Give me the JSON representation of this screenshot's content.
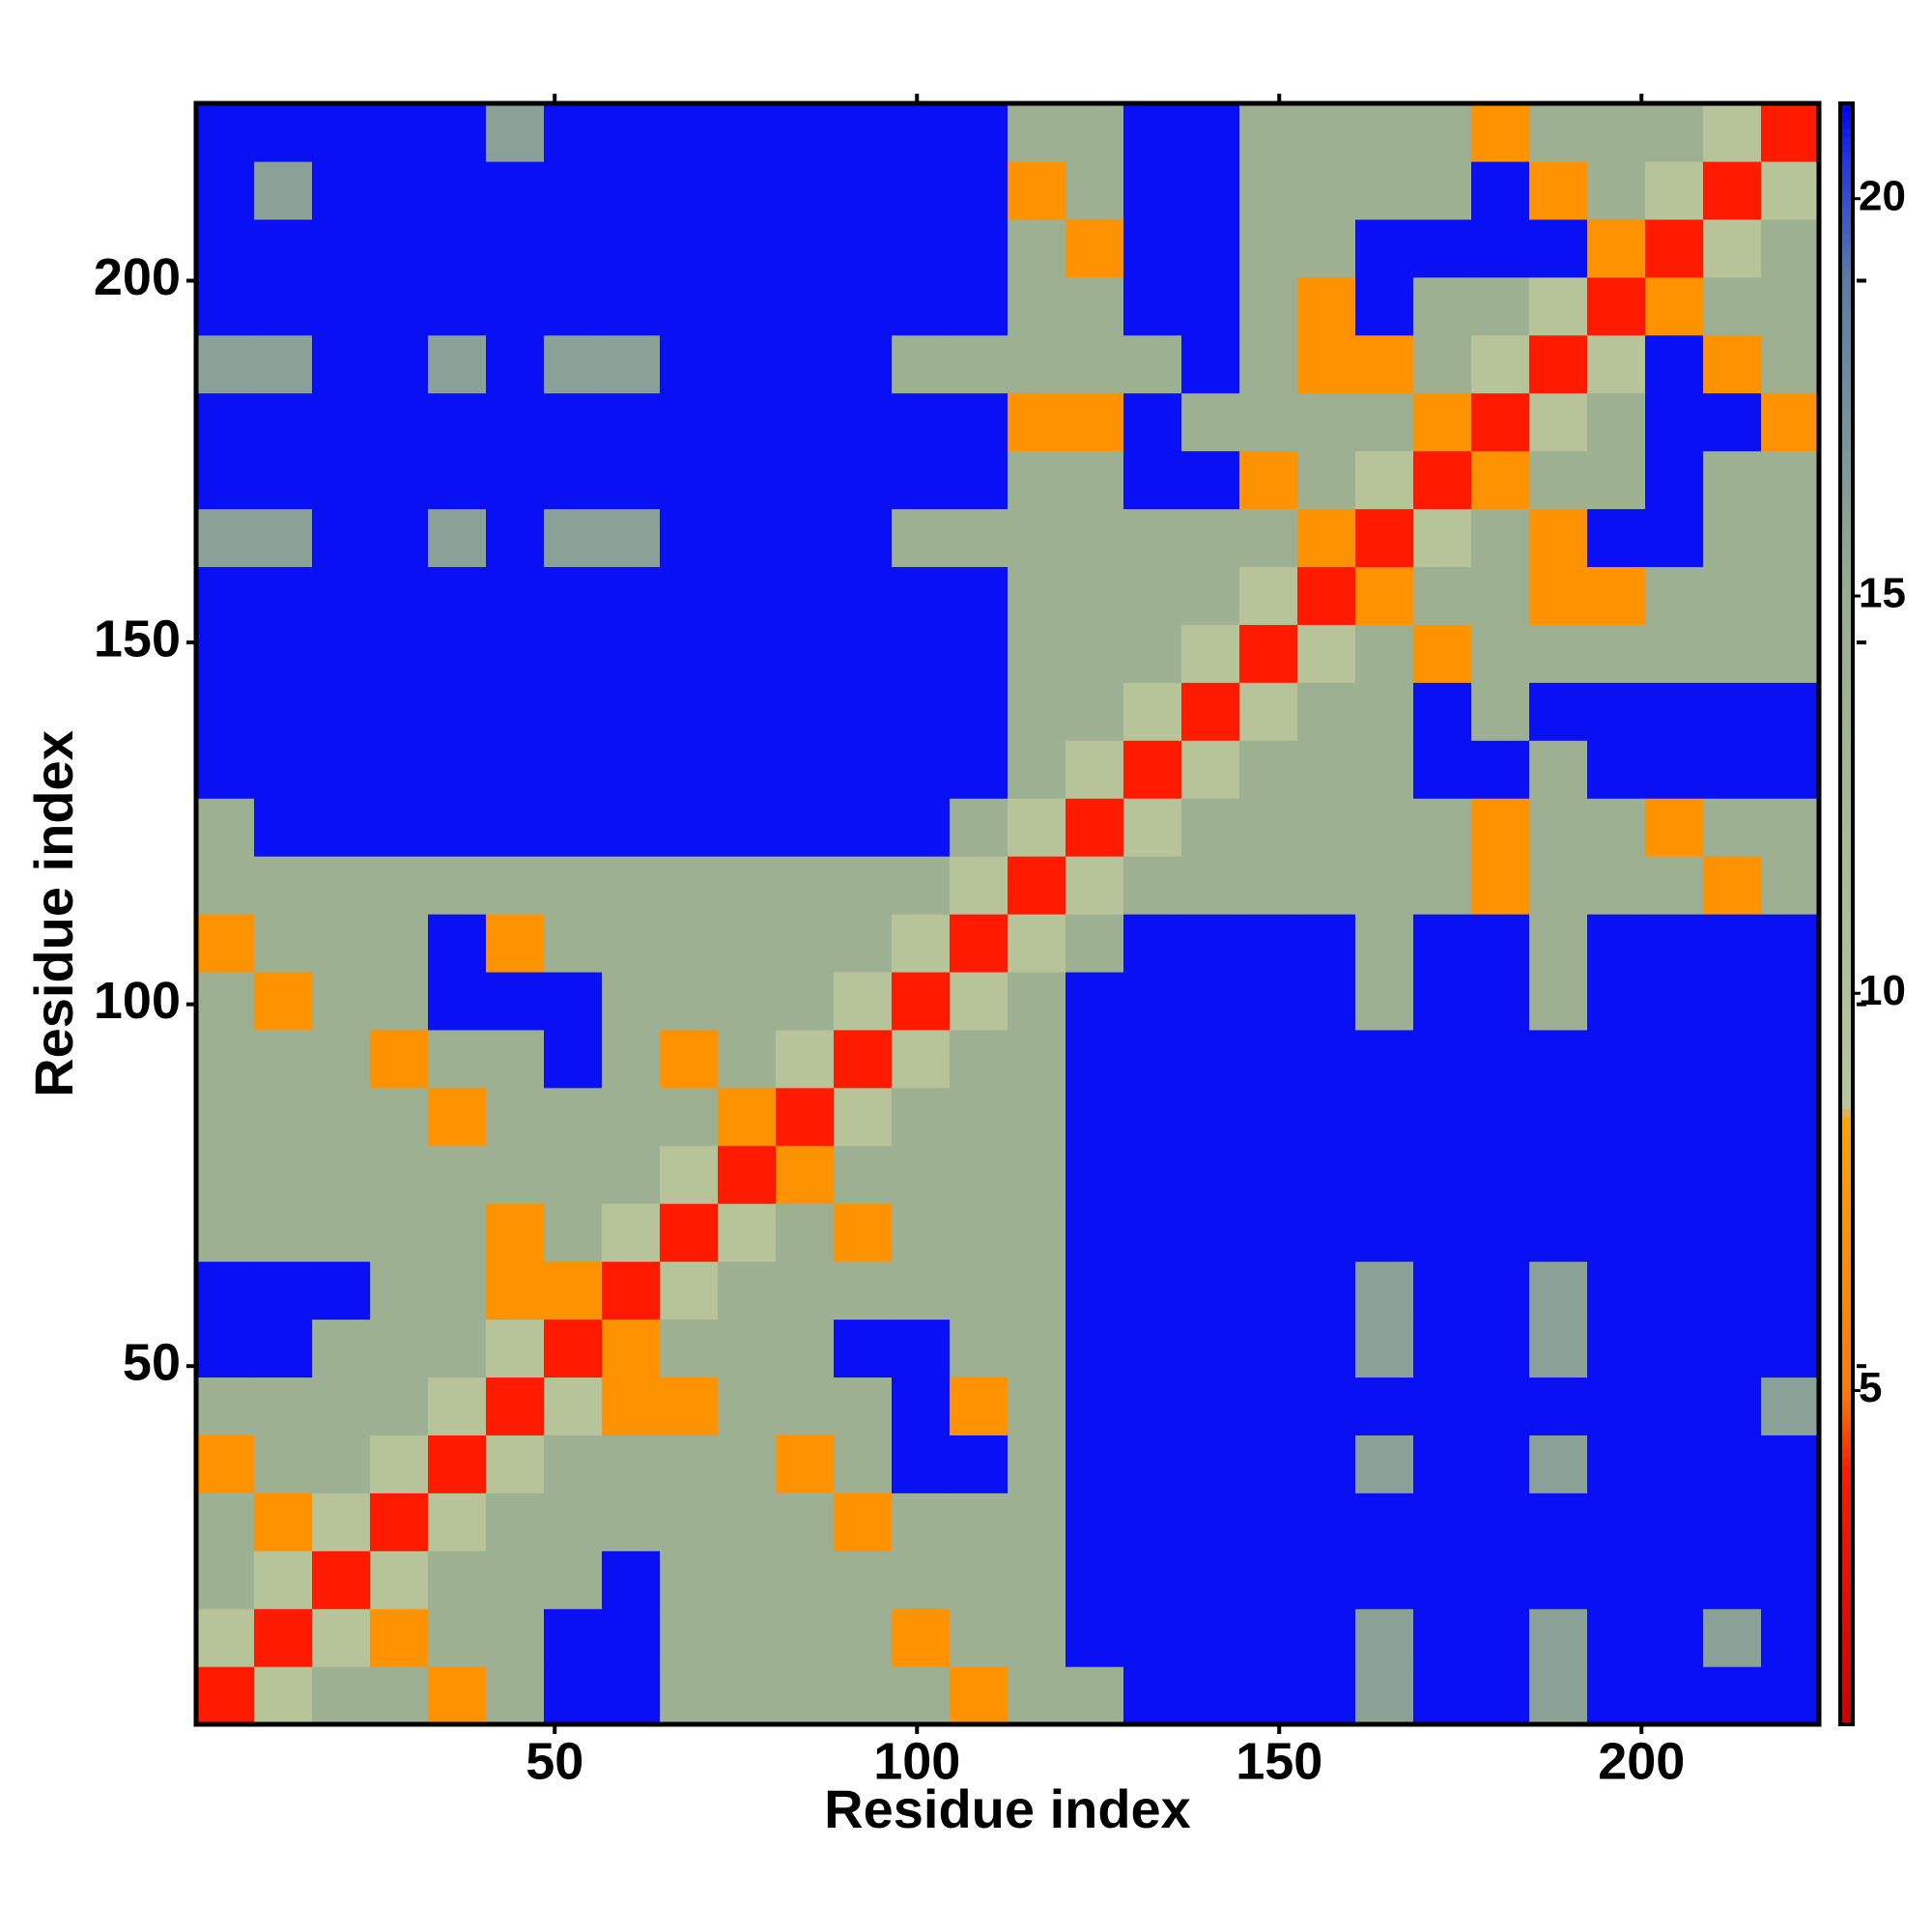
{
  "chart_data": {
    "type": "heatmap",
    "xlabel": "Residue index",
    "ylabel": "Residue index",
    "xlim": [
      0.5,
      224.5
    ],
    "ylim": [
      0.5,
      224.5
    ],
    "xticks": [
      50,
      100,
      150,
      200
    ],
    "yticks": [
      50,
      100,
      150,
      200
    ],
    "bins": [
      0.5,
      8.5,
      16.5,
      24.5,
      32.5,
      40.5,
      48.5,
      56.5,
      64.5,
      72.5,
      80.5,
      88.5,
      96.5,
      104.5,
      112.5,
      120.5,
      128.5,
      136.5,
      144.5,
      152.5,
      160.5,
      168.5,
      176.5,
      184.5,
      192.5,
      200.5,
      208.5,
      216.5,
      224.5
    ],
    "clim": [
      0.8,
      21.2
    ],
    "cticks": [
      5,
      10,
      15,
      20
    ],
    "colorscale": [
      [
        0.8,
        "#d00000"
      ],
      [
        4,
        "#ff1a00"
      ],
      [
        5,
        "#ff7a00"
      ],
      [
        8.4,
        "#ffa200"
      ],
      [
        8.6,
        "#b9c69a"
      ],
      [
        15,
        "#98ad90"
      ],
      [
        19,
        "#5a7ba6"
      ],
      [
        20.5,
        "#1e38e8"
      ],
      [
        21.2,
        "#0000f8"
      ]
    ],
    "z": [
      [
        4,
        9,
        14,
        14,
        7,
        14,
        21,
        21,
        14,
        14,
        14,
        14,
        14,
        7,
        14,
        14,
        21,
        21,
        21,
        21,
        16,
        21,
        21,
        16,
        21,
        21,
        21,
        21
      ],
      [
        9,
        4,
        9,
        7,
        14,
        14,
        21,
        21,
        14,
        14,
        14,
        14,
        7,
        14,
        14,
        21,
        21,
        21,
        21,
        21,
        16,
        21,
        21,
        16,
        21,
        21,
        16,
        21
      ],
      [
        14,
        9,
        4,
        9,
        14,
        14,
        14,
        21,
        14,
        14,
        14,
        14,
        14,
        14,
        14,
        21,
        21,
        21,
        21,
        21,
        21,
        21,
        21,
        21,
        21,
        21,
        21,
        21
      ],
      [
        14,
        7,
        9,
        4,
        9,
        14,
        14,
        14,
        14,
        14,
        14,
        7,
        14,
        14,
        14,
        21,
        21,
        21,
        21,
        21,
        21,
        21,
        21,
        21,
        21,
        21,
        21,
        21
      ],
      [
        7,
        14,
        14,
        9,
        4,
        9,
        14,
        14,
        14,
        14,
        7,
        14,
        21,
        21,
        14,
        21,
        21,
        21,
        21,
        21,
        16,
        21,
        21,
        16,
        21,
        21,
        21,
        21
      ],
      [
        14,
        14,
        14,
        14,
        9,
        4,
        9,
        7,
        7,
        14,
        14,
        14,
        21,
        7,
        14,
        21,
        21,
        21,
        21,
        21,
        21,
        21,
        21,
        21,
        21,
        21,
        21,
        16
      ],
      [
        21,
        21,
        14,
        14,
        14,
        9,
        4,
        7,
        14,
        14,
        14,
        21,
        21,
        14,
        14,
        21,
        21,
        21,
        21,
        21,
        16,
        21,
        21,
        16,
        21,
        21,
        21,
        21
      ],
      [
        21,
        21,
        21,
        14,
        14,
        7,
        7,
        4,
        9,
        14,
        14,
        14,
        14,
        14,
        14,
        21,
        21,
        21,
        21,
        21,
        16,
        21,
        21,
        16,
        21,
        21,
        21,
        21
      ],
      [
        14,
        14,
        14,
        14,
        14,
        7,
        14,
        9,
        4,
        9,
        14,
        7,
        14,
        14,
        14,
        21,
        21,
        21,
        21,
        21,
        21,
        21,
        21,
        21,
        21,
        21,
        21,
        21
      ],
      [
        14,
        14,
        14,
        14,
        14,
        14,
        14,
        14,
        9,
        4,
        7,
        14,
        14,
        14,
        14,
        21,
        21,
        21,
        21,
        21,
        21,
        21,
        21,
        21,
        21,
        21,
        21,
        21
      ],
      [
        14,
        14,
        14,
        14,
        7,
        14,
        14,
        14,
        14,
        7,
        4,
        9,
        14,
        14,
        14,
        21,
        21,
        21,
        21,
        21,
        21,
        21,
        21,
        21,
        21,
        21,
        21,
        21
      ],
      [
        14,
        14,
        14,
        7,
        14,
        14,
        21,
        14,
        7,
        14,
        9,
        4,
        9,
        14,
        14,
        21,
        21,
        21,
        21,
        21,
        21,
        21,
        21,
        21,
        21,
        21,
        21,
        21
      ],
      [
        14,
        7,
        14,
        14,
        21,
        21,
        21,
        14,
        14,
        14,
        14,
        9,
        4,
        9,
        14,
        21,
        21,
        21,
        21,
        21,
        14,
        21,
        21,
        14,
        21,
        21,
        21,
        21
      ],
      [
        7,
        14,
        14,
        14,
        21,
        7,
        14,
        14,
        14,
        14,
        14,
        14,
        9,
        4,
        9,
        14,
        21,
        21,
        21,
        21,
        14,
        21,
        21,
        14,
        21,
        21,
        21,
        21
      ],
      [
        14,
        14,
        14,
        14,
        14,
        14,
        14,
        14,
        14,
        14,
        14,
        14,
        14,
        9,
        4,
        9,
        14,
        14,
        14,
        14,
        14,
        14,
        7,
        14,
        14,
        14,
        7,
        14
      ],
      [
        14,
        21,
        21,
        21,
        21,
        21,
        21,
        21,
        21,
        21,
        21,
        21,
        21,
        14,
        9,
        4,
        9,
        14,
        14,
        14,
        14,
        14,
        7,
        14,
        14,
        7,
        14,
        14
      ],
      [
        21,
        21,
        21,
        21,
        21,
        21,
        21,
        21,
        21,
        21,
        21,
        21,
        21,
        21,
        14,
        9,
        4,
        9,
        14,
        14,
        14,
        21,
        21,
        14,
        21,
        21,
        21,
        21
      ],
      [
        21,
        21,
        21,
        21,
        21,
        21,
        21,
        21,
        21,
        21,
        21,
        21,
        21,
        21,
        14,
        14,
        9,
        4,
        9,
        14,
        14,
        21,
        14,
        21,
        21,
        21,
        21,
        21
      ],
      [
        21,
        21,
        21,
        21,
        21,
        21,
        21,
        21,
        21,
        21,
        21,
        21,
        21,
        21,
        14,
        14,
        14,
        9,
        4,
        9,
        14,
        7,
        14,
        14,
        14,
        14,
        14,
        14
      ],
      [
        21,
        21,
        21,
        21,
        21,
        21,
        21,
        21,
        21,
        21,
        21,
        21,
        21,
        21,
        14,
        14,
        14,
        14,
        9,
        4,
        7,
        14,
        14,
        7,
        7,
        14,
        14,
        14
      ],
      [
        16,
        16,
        21,
        21,
        16,
        21,
        16,
        16,
        21,
        21,
        21,
        21,
        14,
        14,
        14,
        14,
        14,
        14,
        14,
        7,
        4,
        9,
        14,
        7,
        21,
        21,
        14,
        14
      ],
      [
        21,
        21,
        21,
        21,
        21,
        21,
        21,
        21,
        21,
        21,
        21,
        21,
        21,
        21,
        14,
        14,
        21,
        21,
        7,
        14,
        9,
        4,
        7,
        14,
        14,
        21,
        14,
        14
      ],
      [
        21,
        21,
        21,
        21,
        21,
        21,
        21,
        21,
        21,
        21,
        21,
        21,
        21,
        21,
        7,
        7,
        21,
        14,
        14,
        14,
        14,
        7,
        4,
        9,
        14,
        21,
        21,
        7
      ],
      [
        16,
        16,
        21,
        21,
        16,
        21,
        16,
        16,
        21,
        21,
        21,
        21,
        14,
        14,
        14,
        14,
        14,
        21,
        14,
        7,
        7,
        14,
        9,
        4,
        9,
        21,
        7,
        14
      ],
      [
        21,
        21,
        21,
        21,
        21,
        21,
        21,
        21,
        21,
        21,
        21,
        21,
        21,
        21,
        14,
        14,
        21,
        21,
        14,
        7,
        21,
        14,
        14,
        9,
        4,
        7,
        14,
        14
      ],
      [
        21,
        21,
        21,
        21,
        21,
        21,
        21,
        21,
        21,
        21,
        21,
        21,
        21,
        21,
        14,
        7,
        21,
        21,
        14,
        14,
        21,
        21,
        21,
        21,
        7,
        4,
        9,
        14
      ],
      [
        21,
        16,
        21,
        21,
        21,
        21,
        21,
        21,
        21,
        21,
        21,
        21,
        21,
        21,
        7,
        14,
        21,
        21,
        14,
        14,
        14,
        14,
        21,
        7,
        14,
        9,
        4,
        9
      ],
      [
        21,
        21,
        21,
        21,
        21,
        16,
        21,
        21,
        21,
        21,
        21,
        21,
        21,
        21,
        14,
        14,
        21,
        21,
        14,
        14,
        14,
        14,
        7,
        14,
        14,
        14,
        9,
        4
      ]
    ]
  }
}
